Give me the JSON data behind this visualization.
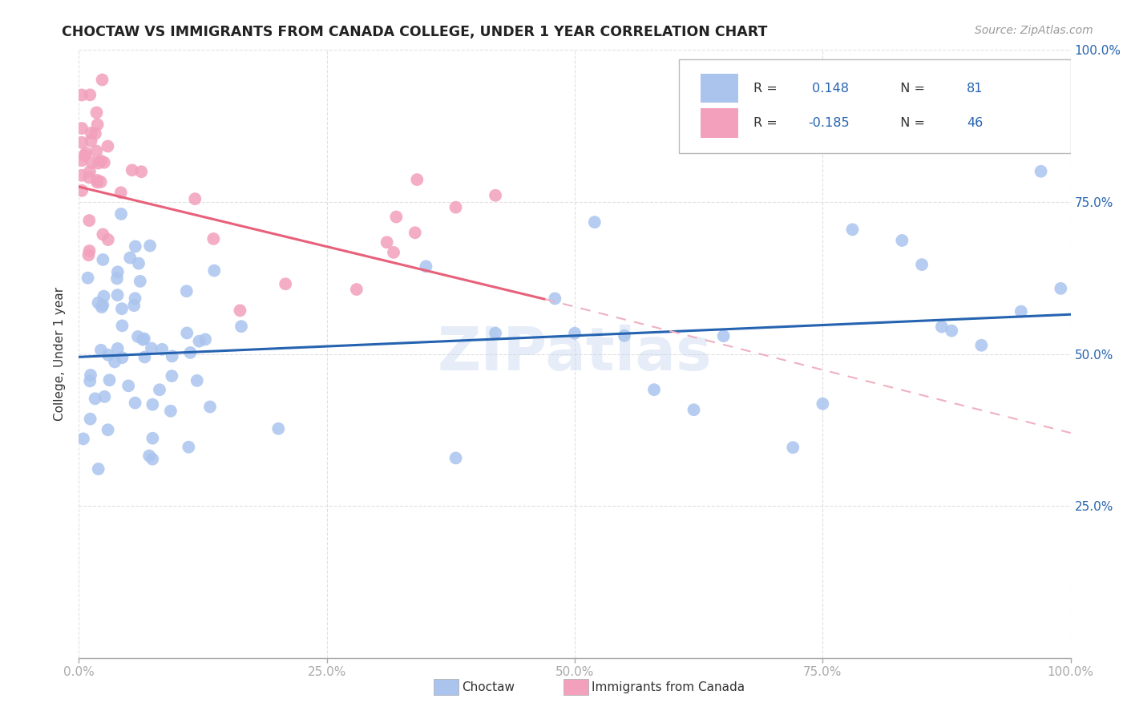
{
  "title": "CHOCTAW VS IMMIGRANTS FROM CANADA COLLEGE, UNDER 1 YEAR CORRELATION CHART",
  "source": "Source: ZipAtlas.com",
  "ylabel": "College, Under 1 year",
  "R_choctaw": 0.148,
  "N_choctaw": 81,
  "R_canada": -0.185,
  "N_canada": 46,
  "choctaw_color": "#aac4ee",
  "canada_color": "#f2a0bb",
  "choctaw_line_color": "#2563b0",
  "canada_line_color": "#e8607a",
  "canada_line_solid_color": "#e8607a",
  "canada_line_dash_color": "#f0b0c0",
  "watermark": "ZIPatlas",
  "legend_R_color": "#2563b0",
  "legend_text_color": "#333333",
  "right_axis_color": "#2563b0",
  "title_color": "#222222",
  "source_color": "#999999",
  "grid_color": "#dddddd",
  "bottom_spine_color": "#aaaaaa"
}
